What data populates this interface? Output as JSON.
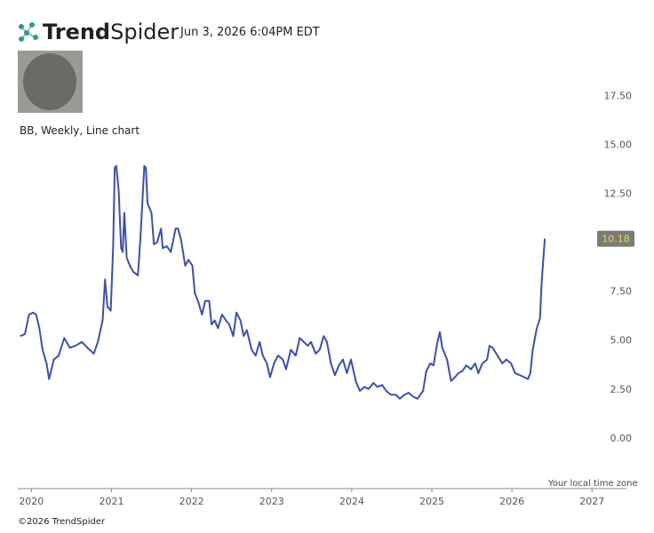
{
  "header": {
    "brand_bold": "Trend",
    "brand_light": "Spider",
    "timestamp": "Jun 3, 2026 6:04PM EDT",
    "copyright": "©2026 TrendSpider"
  },
  "chart_data": {
    "type": "line",
    "title": "BB, Weekly, Line chart",
    "timezone_note": "Your local time zone",
    "last_price": 10.18,
    "x": [
      2019.86,
      2019.92,
      2019.97,
      2020.02,
      2020.06,
      2020.1,
      2020.14,
      2020.19,
      2020.22,
      2020.28,
      2020.34,
      2020.41,
      2020.48,
      2020.55,
      2020.63,
      2020.7,
      2020.78,
      2020.83,
      2020.89,
      2020.92,
      2020.95,
      2020.99,
      2021.02,
      2021.04,
      2021.06,
      2021.09,
      2021.12,
      2021.14,
      2021.16,
      2021.19,
      2021.23,
      2021.27,
      2021.33,
      2021.36,
      2021.41,
      2021.43,
      2021.45,
      2021.5,
      2021.53,
      2021.57,
      2021.62,
      2021.64,
      2021.69,
      2021.74,
      2021.8,
      2021.83,
      2021.87,
      2021.92,
      2021.96,
      2022.01,
      2022.04,
      2022.08,
      2022.13,
      2022.17,
      2022.22,
      2022.25,
      2022.29,
      2022.33,
      2022.38,
      2022.43,
      2022.47,
      2022.52,
      2022.56,
      2022.61,
      2022.65,
      2022.69,
      2022.75,
      2022.8,
      2022.85,
      2022.89,
      2022.94,
      2022.98,
      2023.03,
      2023.08,
      2023.14,
      2023.18,
      2023.24,
      2023.3,
      2023.35,
      2023.4,
      2023.45,
      2023.49,
      2023.55,
      2023.6,
      2023.65,
      2023.69,
      2023.74,
      2023.79,
      2023.84,
      2023.89,
      2023.94,
      2023.99,
      2024.05,
      2024.1,
      2024.16,
      2024.21,
      2024.27,
      2024.32,
      2024.38,
      2024.43,
      2024.49,
      2024.55,
      2024.6,
      2024.66,
      2024.71,
      2024.77,
      2024.82,
      2024.89,
      2024.93,
      2024.98,
      2025.02,
      2025.07,
      2025.1,
      2025.13,
      2025.19,
      2025.24,
      2025.29,
      2025.33,
      2025.38,
      2025.43,
      2025.49,
      2025.54,
      2025.58,
      2025.63,
      2025.69,
      2025.72,
      2025.76,
      2025.82,
      2025.88,
      2025.93,
      2025.99,
      2026.04,
      2026.1,
      2026.15,
      2026.2,
      2026.23,
      2026.26,
      2026.31,
      2026.35,
      2026.37,
      2026.41
    ],
    "series": [
      {
        "name": "BB",
        "color": "#3b4fb8",
        "values": [
          5.2,
          5.3,
          6.3,
          6.4,
          6.3,
          5.6,
          4.5,
          3.8,
          3.0,
          4.0,
          4.2,
          5.1,
          4.6,
          4.7,
          4.9,
          4.6,
          4.3,
          4.9,
          6.0,
          8.1,
          6.7,
          6.5,
          9.7,
          13.8,
          13.9,
          12.6,
          9.7,
          9.5,
          11.5,
          9.2,
          8.8,
          8.5,
          8.3,
          10.1,
          13.9,
          13.8,
          12.0,
          11.5,
          9.9,
          10.0,
          10.7,
          9.7,
          9.8,
          9.5,
          10.7,
          10.7,
          10.1,
          8.8,
          9.1,
          8.8,
          7.4,
          7.0,
          6.3,
          7.0,
          7.0,
          5.8,
          6.0,
          5.6,
          6.3,
          6.0,
          5.8,
          5.2,
          6.4,
          6.0,
          5.2,
          5.5,
          4.5,
          4.2,
          4.9,
          4.2,
          3.8,
          3.1,
          3.8,
          4.2,
          4.0,
          3.5,
          4.5,
          4.2,
          5.1,
          4.9,
          4.7,
          4.9,
          4.3,
          4.5,
          5.2,
          4.9,
          3.8,
          3.2,
          3.7,
          4.0,
          3.3,
          4.0,
          2.9,
          2.4,
          2.6,
          2.5,
          2.8,
          2.6,
          2.7,
          2.4,
          2.2,
          2.2,
          2.0,
          2.2,
          2.3,
          2.1,
          2.0,
          2.4,
          3.4,
          3.8,
          3.7,
          4.9,
          5.4,
          4.6,
          4.0,
          2.9,
          3.1,
          3.3,
          3.4,
          3.7,
          3.5,
          3.8,
          3.3,
          3.8,
          4.0,
          4.7,
          4.6,
          4.2,
          3.8,
          4.0,
          3.8,
          3.3,
          3.2,
          3.1,
          3.0,
          3.3,
          4.5,
          5.6,
          6.1,
          7.9,
          10.18
        ]
      }
    ],
    "xlim": [
      2019.83,
      2027.43
    ],
    "xticks": [
      2020,
      2021,
      2022,
      2023,
      2024,
      2025,
      2026,
      2027
    ],
    "ylim": [
      -2.6,
      18.3
    ],
    "yticks": [
      {
        "value": 0,
        "label": "0.00"
      },
      {
        "value": 2.5,
        "label": "2.50"
      },
      {
        "value": 5,
        "label": "5.00"
      },
      {
        "value": 7.5,
        "label": "7.50"
      },
      {
        "value": 12.5,
        "label": "12.50"
      },
      {
        "value": 15,
        "label": "15.00"
      },
      {
        "value": 17.5,
        "label": "17.50"
      }
    ],
    "grid": false
  }
}
